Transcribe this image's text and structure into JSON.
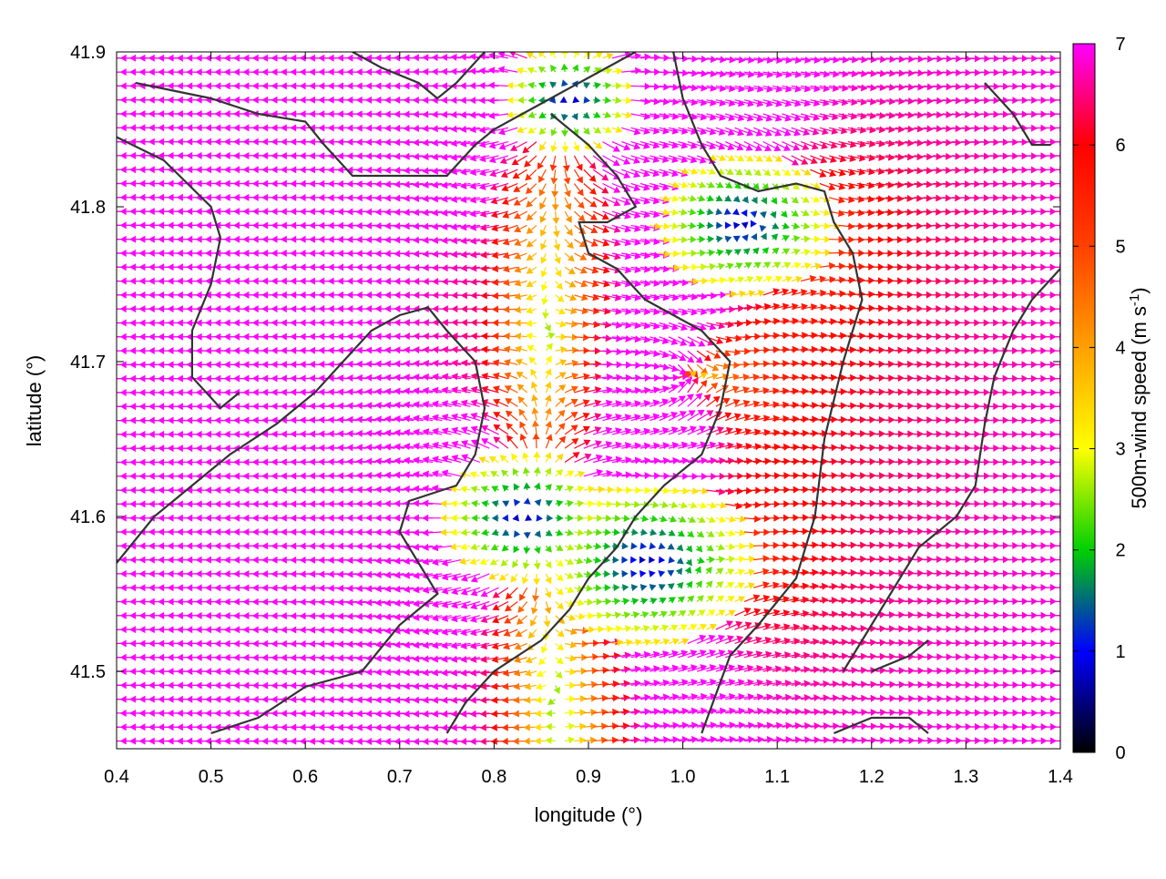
{
  "chart_data": {
    "type": "vector-field",
    "xlabel": "longitude (°)",
    "ylabel": "latitude (°)",
    "xlim": [
      0.4,
      1.4
    ],
    "ylim": [
      41.45,
      41.9
    ],
    "xticks": [
      {
        "value": 0.4,
        "label": "0.4"
      },
      {
        "value": 0.5,
        "label": "0.5"
      },
      {
        "value": 0.6,
        "label": "0.6"
      },
      {
        "value": 0.7,
        "label": "0.7"
      },
      {
        "value": 0.8,
        "label": "0.8"
      },
      {
        "value": 0.9,
        "label": "0.9"
      },
      {
        "value": 1.0,
        "label": "1.0"
      },
      {
        "value": 1.1,
        "label": "1.1"
      },
      {
        "value": 1.2,
        "label": "1.2"
      },
      {
        "value": 1.3,
        "label": "1.3"
      },
      {
        "value": 1.4,
        "label": "1.4"
      }
    ],
    "yticks": [
      {
        "value": 41.5,
        "label": "41.5"
      },
      {
        "value": 41.6,
        "label": "41.6"
      },
      {
        "value": 41.7,
        "label": "41.7"
      },
      {
        "value": 41.8,
        "label": "41.8"
      },
      {
        "value": 41.9,
        "label": "41.9"
      }
    ],
    "colorbar": {
      "label": "500m-wind speed (m s",
      "label_sup": "-1",
      "label_end": ")",
      "range": [
        0,
        7
      ],
      "ticks": [
        {
          "value": 0,
          "label": "0"
        },
        {
          "value": 1,
          "label": "1"
        },
        {
          "value": 2,
          "label": "2"
        },
        {
          "value": 3,
          "label": "3"
        },
        {
          "value": 4,
          "label": "4"
        },
        {
          "value": 5,
          "label": "5"
        },
        {
          "value": 6,
          "label": "6"
        },
        {
          "value": 7,
          "label": "7"
        }
      ],
      "palette": [
        "#000000",
        "#0000ff",
        "#00d000",
        "#ffff00",
        "#ffa000",
        "#ff4000",
        "#ff0000",
        "#ff00ff"
      ]
    },
    "wind_centers": [
      {
        "lon": 0.83,
        "lat": 41.6,
        "type": "divergence",
        "strength": 1.0
      },
      {
        "lon": 0.88,
        "lat": 41.87,
        "type": "divergence",
        "strength": 0.8
      },
      {
        "lon": 1.06,
        "lat": 41.79,
        "type": "convergence",
        "strength": 0.9
      },
      {
        "lon": 0.99,
        "lat": 41.69,
        "type": "convergence",
        "strength": 0.8
      },
      {
        "lon": 0.99,
        "lat": 41.57,
        "type": "convergence",
        "strength": 0.9
      }
    ],
    "calm_zones": [
      {
        "lon": 1.06,
        "lat": 41.79,
        "radius": 0.06
      },
      {
        "lon": 0.96,
        "lat": 41.57,
        "radius": 0.07
      },
      {
        "lon": 0.83,
        "lat": 41.6,
        "radius": 0.05
      },
      {
        "lon": 0.88,
        "lat": 41.87,
        "radius": 0.04
      }
    ],
    "contours": [
      [
        [
          0.42,
          41.88
        ],
        [
          0.5,
          41.87
        ],
        [
          0.55,
          41.86
        ],
        [
          0.6,
          41.855
        ],
        [
          0.62,
          41.84
        ],
        [
          0.65,
          41.82
        ],
        [
          0.7,
          41.82
        ],
        [
          0.75,
          41.82
        ],
        [
          0.78,
          41.84
        ],
        [
          0.8,
          41.85
        ],
        [
          0.83,
          41.86
        ],
        [
          0.86,
          41.87
        ],
        [
          0.89,
          41.88
        ],
        [
          0.92,
          41.89
        ],
        [
          0.95,
          41.9
        ]
      ],
      [
        [
          0.4,
          41.845
        ],
        [
          0.45,
          41.83
        ],
        [
          0.5,
          41.8
        ],
        [
          0.51,
          41.78
        ],
        [
          0.5,
          41.75
        ],
        [
          0.48,
          41.72
        ],
        [
          0.48,
          41.69
        ],
        [
          0.51,
          41.67
        ],
        [
          0.53,
          41.68
        ]
      ],
      [
        [
          0.65,
          41.9
        ],
        [
          0.68,
          41.89
        ],
        [
          0.72,
          41.88
        ],
        [
          0.74,
          41.87
        ],
        [
          0.76,
          41.88
        ],
        [
          0.79,
          41.9
        ]
      ],
      [
        [
          0.99,
          41.9
        ],
        [
          1.0,
          41.87
        ],
        [
          1.02,
          41.84
        ],
        [
          1.04,
          41.82
        ],
        [
          1.08,
          41.81
        ],
        [
          1.12,
          41.815
        ],
        [
          1.15,
          41.81
        ],
        [
          1.16,
          41.79
        ],
        [
          1.18,
          41.77
        ],
        [
          1.19,
          41.74
        ],
        [
          1.17,
          41.7
        ],
        [
          1.15,
          41.65
        ],
        [
          1.14,
          41.6
        ],
        [
          1.12,
          41.56
        ],
        [
          1.08,
          41.53
        ],
        [
          1.05,
          41.51
        ],
        [
          1.02,
          41.46
        ]
      ],
      [
        [
          0.86,
          41.86
        ],
        [
          0.9,
          41.84
        ],
        [
          0.93,
          41.82
        ],
        [
          0.95,
          41.8
        ],
        [
          0.92,
          41.79
        ],
        [
          0.89,
          41.79
        ],
        [
          0.9,
          41.77
        ],
        [
          0.93,
          41.76
        ],
        [
          0.96,
          41.74
        ],
        [
          0.99,
          41.73
        ],
        [
          1.02,
          41.72
        ],
        [
          1.05,
          41.7
        ],
        [
          1.04,
          41.67
        ],
        [
          1.02,
          41.64
        ],
        [
          0.98,
          41.62
        ],
        [
          0.95,
          41.6
        ],
        [
          0.93,
          41.58
        ],
        [
          0.9,
          41.56
        ],
        [
          0.88,
          41.54
        ],
        [
          0.85,
          41.52
        ],
        [
          0.8,
          41.5
        ],
        [
          0.77,
          41.48
        ],
        [
          0.75,
          41.46
        ]
      ],
      [
        [
          0.4,
          41.57
        ],
        [
          0.44,
          41.6
        ],
        [
          0.48,
          41.62
        ],
        [
          0.52,
          41.64
        ],
        [
          0.57,
          41.66
        ],
        [
          0.61,
          41.68
        ],
        [
          0.64,
          41.7
        ],
        [
          0.67,
          41.72
        ],
        [
          0.7,
          41.73
        ],
        [
          0.73,
          41.735
        ],
        [
          0.75,
          41.72
        ],
        [
          0.78,
          41.7
        ],
        [
          0.79,
          41.67
        ],
        [
          0.78,
          41.64
        ],
        [
          0.76,
          41.62
        ],
        [
          0.71,
          41.61
        ],
        [
          0.7,
          41.59
        ],
        [
          0.72,
          41.57
        ],
        [
          0.74,
          41.55
        ],
        [
          0.7,
          41.53
        ],
        [
          0.66,
          41.5
        ],
        [
          0.6,
          41.49
        ],
        [
          0.55,
          41.47
        ],
        [
          0.5,
          41.46
        ]
      ],
      [
        [
          1.16,
          41.46
        ],
        [
          1.2,
          41.47
        ],
        [
          1.24,
          41.47
        ],
        [
          1.26,
          41.46
        ]
      ],
      [
        [
          1.2,
          41.5
        ],
        [
          1.24,
          41.51
        ],
        [
          1.26,
          41.52
        ]
      ],
      [
        [
          1.32,
          41.88
        ],
        [
          1.35,
          41.86
        ],
        [
          1.37,
          41.84
        ],
        [
          1.39,
          41.84
        ]
      ],
      [
        [
          1.4,
          41.76
        ],
        [
          1.37,
          41.74
        ],
        [
          1.35,
          41.72
        ],
        [
          1.33,
          41.69
        ],
        [
          1.32,
          41.66
        ],
        [
          1.31,
          41.62
        ],
        [
          1.29,
          41.6
        ],
        [
          1.25,
          41.58
        ],
        [
          1.22,
          41.55
        ],
        [
          1.19,
          41.52
        ],
        [
          1.17,
          41.5
        ]
      ]
    ]
  }
}
